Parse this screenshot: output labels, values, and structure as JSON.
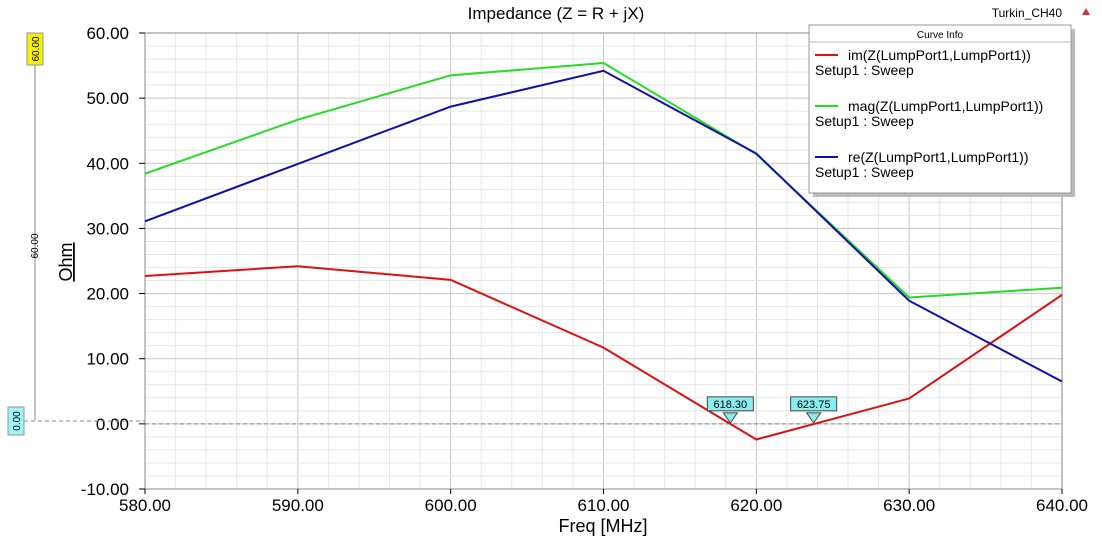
{
  "chart_data": {
    "type": "line",
    "title": "Impedance (Z = R + jX)",
    "design_name": "Turkin_CH40",
    "xlabel": "Freq [MHz]",
    "ylabel": "Ohm",
    "xlim": [
      580,
      640
    ],
    "ylim": [
      -10,
      60
    ],
    "x_ticks": [
      "580.00",
      "590.00",
      "600.00",
      "610.00",
      "620.00",
      "630.00",
      "640.00"
    ],
    "y_ticks": [
      "60.00",
      "50.00",
      "40.00",
      "30.00",
      "20.00",
      "10.00",
      "0.00",
      "-10.00"
    ],
    "grid": true,
    "x": [
      580,
      590,
      600,
      610,
      620,
      630,
      640
    ],
    "series": [
      {
        "name": "im(Z(LumpPort1,LumpPort1))",
        "setup": "Setup1 : Sweep",
        "color": "#dd1111",
        "values": [
          22.7,
          24.2,
          22.1,
          11.7,
          -2.4,
          3.9,
          19.8
        ]
      },
      {
        "name": "mag(Z(LumpPort1,LumpPort1))",
        "setup": "Setup1 : Sweep",
        "color": "#22dd22",
        "values": [
          38.4,
          46.7,
          53.5,
          55.4,
          41.4,
          19.4,
          20.9
        ]
      },
      {
        "name": "re(Z(LumpPort1,LumpPort1))",
        "setup": "Setup1 : Sweep",
        "color": "#1111aa",
        "values": [
          31.1,
          39.9,
          48.7,
          54.2,
          41.5,
          18.9,
          6.5
        ]
      }
    ],
    "legend": {
      "title": "Curve Info",
      "position": "top-right"
    },
    "markers": [
      {
        "label": "618.30",
        "x": 618.3,
        "y": 0
      },
      {
        "label": "623.75",
        "x": 623.75,
        "y": 0
      }
    ],
    "reference_line": {
      "y": 0,
      "style": "dashed",
      "color": "#888888"
    },
    "left_scale": {
      "top_label": "60.00",
      "bottom_label": "0.00",
      "range_label": "60.00"
    }
  }
}
